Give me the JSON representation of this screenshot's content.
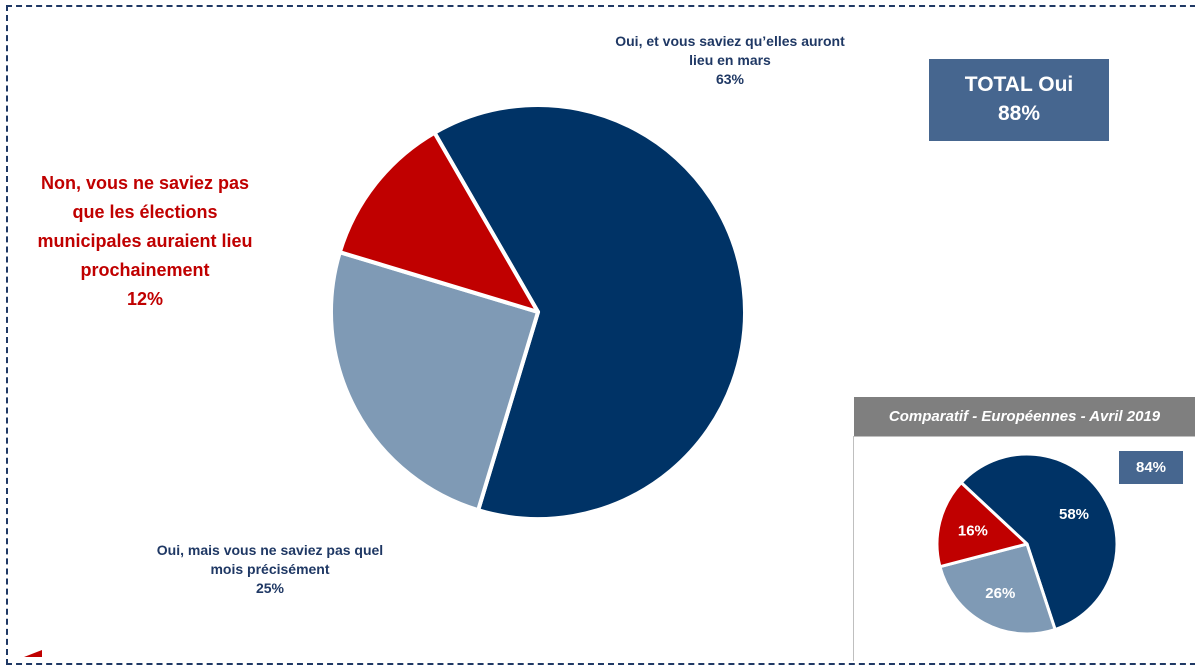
{
  "chart_data": [
    {
      "type": "pie",
      "slices": [
        {
          "label_lines": [
            "Oui, et vous saviez qu’elles auront",
            "lieu en mars"
          ],
          "value": 63,
          "value_label": "63%",
          "color": "#003366"
        },
        {
          "label_lines": [
            "Oui, mais vous ne saviez pas quel",
            "mois précisément"
          ],
          "value": 25,
          "value_label": "25%",
          "color": "#7f9ab5"
        },
        {
          "label_lines": [
            "Non, vous ne saviez pas",
            "que les élections",
            "municipales auraient lieu",
            "prochainement"
          ],
          "value": 12,
          "value_label": "12%",
          "color": "#c00000"
        }
      ],
      "total_label": "TOTAL Oui",
      "total_value": "88%"
    },
    {
      "type": "pie",
      "title": "Comparatif - Européennes - Avril 2019",
      "slices": [
        {
          "value": 58,
          "value_label": "58%",
          "color": "#003366"
        },
        {
          "value": 26,
          "value_label": "26%",
          "color": "#7f9ab5"
        },
        {
          "value": 16,
          "value_label": "16%",
          "color": "#c00000"
        }
      ],
      "total_value": "84%"
    }
  ]
}
